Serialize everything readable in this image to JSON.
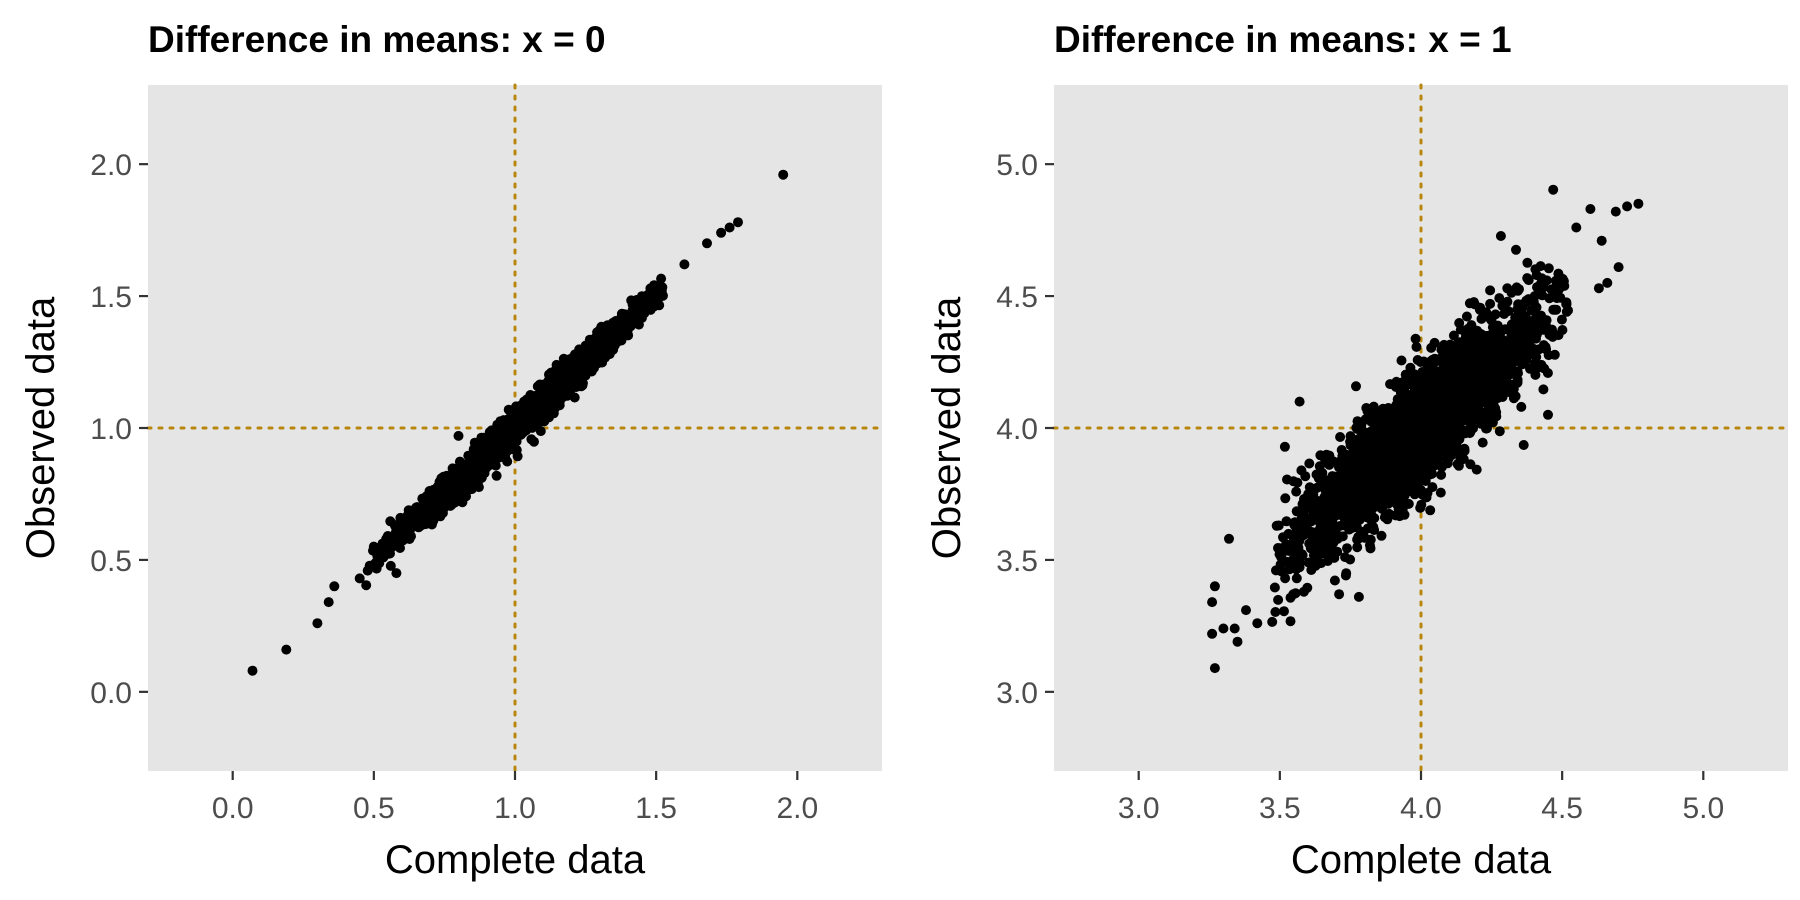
{
  "chart_data": [
    {
      "type": "scatter",
      "title": "Difference in means: x = 0",
      "xlabel": "Complete data",
      "ylabel": "Observed data",
      "xlim": [
        -0.3,
        2.3
      ],
      "ylim": [
        -0.3,
        2.3
      ],
      "xticks": [
        "0.0",
        "0.5",
        "1.0",
        "1.5",
        "2.0"
      ],
      "yticks": [
        "0.0",
        "0.5",
        "1.0",
        "1.5",
        "2.0"
      ],
      "reference_lines": {
        "x": 1.0,
        "y": 1.0,
        "style": "dotted",
        "color": "#b8860b"
      },
      "point_color": "#000000",
      "panel_background": "#e5e5e5",
      "grid": false,
      "cloud": {
        "n": 2500,
        "x_mean": 1.0,
        "x_sd": 0.22,
        "slope": 1.0,
        "residual_sd": 0.03
      },
      "points": [
        {
          "x": 0.07,
          "y": 0.08
        },
        {
          "x": 0.19,
          "y": 0.16
        },
        {
          "x": 0.3,
          "y": 0.26
        },
        {
          "x": 0.34,
          "y": 0.34
        },
        {
          "x": 0.36,
          "y": 0.4
        },
        {
          "x": 0.45,
          "y": 0.43
        },
        {
          "x": 0.52,
          "y": 0.51
        },
        {
          "x": 0.58,
          "y": 0.45
        },
        {
          "x": 0.8,
          "y": 0.97
        },
        {
          "x": 1.52,
          "y": 1.52
        },
        {
          "x": 1.6,
          "y": 1.62
        },
        {
          "x": 1.68,
          "y": 1.7
        },
        {
          "x": 1.73,
          "y": 1.74
        },
        {
          "x": 1.76,
          "y": 1.76
        },
        {
          "x": 1.79,
          "y": 1.78
        },
        {
          "x": 1.95,
          "y": 1.96
        }
      ]
    },
    {
      "type": "scatter",
      "title": "Difference in means: x = 1",
      "xlabel": "Complete data",
      "ylabel": "Observed data",
      "xlim": [
        2.7,
        5.3
      ],
      "ylim": [
        2.7,
        5.3
      ],
      "xticks": [
        "3.0",
        "3.5",
        "4.0",
        "4.5",
        "5.0"
      ],
      "yticks": [
        "3.0",
        "3.5",
        "4.0",
        "4.5",
        "5.0"
      ],
      "reference_lines": {
        "x": 4.0,
        "y": 4.0,
        "style": "dotted",
        "color": "#b8860b"
      },
      "point_color": "#000000",
      "panel_background": "#e5e5e5",
      "grid": false,
      "cloud": {
        "n": 2500,
        "x_mean": 4.0,
        "x_sd": 0.22,
        "slope": 0.95,
        "residual_sd": 0.11
      },
      "points": [
        {
          "x": 3.27,
          "y": 3.09
        },
        {
          "x": 3.26,
          "y": 3.22
        },
        {
          "x": 3.26,
          "y": 3.34
        },
        {
          "x": 3.27,
          "y": 3.4
        },
        {
          "x": 3.3,
          "y": 3.24
        },
        {
          "x": 3.34,
          "y": 3.24
        },
        {
          "x": 3.35,
          "y": 3.19
        },
        {
          "x": 3.32,
          "y": 3.58
        },
        {
          "x": 3.38,
          "y": 3.31
        },
        {
          "x": 3.42,
          "y": 3.26
        },
        {
          "x": 3.57,
          "y": 4.1
        },
        {
          "x": 3.78,
          "y": 3.36
        },
        {
          "x": 3.71,
          "y": 3.37
        },
        {
          "x": 4.45,
          "y": 4.05
        },
        {
          "x": 4.55,
          "y": 4.76
        },
        {
          "x": 4.6,
          "y": 4.83
        },
        {
          "x": 4.64,
          "y": 4.71
        },
        {
          "x": 4.69,
          "y": 4.82
        },
        {
          "x": 4.7,
          "y": 4.61
        },
        {
          "x": 4.73,
          "y": 4.84
        },
        {
          "x": 4.77,
          "y": 4.85
        },
        {
          "x": 4.63,
          "y": 4.53
        },
        {
          "x": 4.66,
          "y": 4.55
        }
      ]
    }
  ]
}
